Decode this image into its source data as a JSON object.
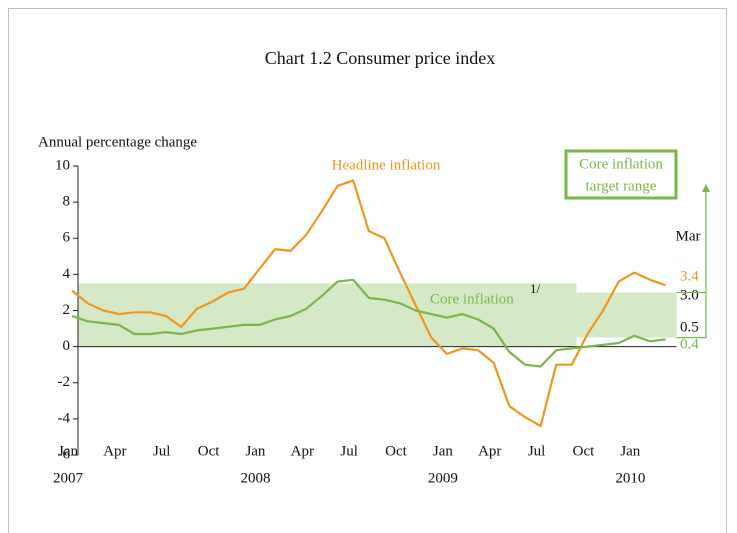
{
  "chart_data": {
    "type": "line",
    "title": "Chart 1.2  Consumer price index",
    "y_label": "Annual percentage change",
    "categories": [
      "Jan",
      null,
      null,
      "Apr",
      null,
      null,
      "Jul",
      null,
      null,
      "Oct",
      null,
      null,
      "Jan",
      null,
      null,
      "Apr",
      null,
      null,
      "Jul",
      null,
      null,
      "Oct",
      null,
      null,
      "Jan",
      null,
      null,
      "Apr",
      null,
      null,
      "Jul",
      null,
      null,
      "Oct",
      null,
      null,
      "Jan",
      null,
      null
    ],
    "years": [
      "2007",
      null,
      null,
      null,
      null,
      null,
      null,
      null,
      null,
      null,
      null,
      null,
      "2008",
      null,
      null,
      null,
      null,
      null,
      null,
      null,
      null,
      null,
      null,
      null,
      "2009",
      null,
      null,
      null,
      null,
      null,
      null,
      null,
      null,
      null,
      null,
      null,
      "2010",
      null,
      null
    ],
    "series": [
      {
        "name": "Headline inflation",
        "color": "#f0961e",
        "values": [
          3.1,
          2.4,
          2.0,
          1.8,
          1.9,
          1.9,
          1.7,
          1.1,
          2.1,
          2.5,
          3.0,
          3.2,
          4.3,
          5.4,
          5.3,
          6.2,
          7.5,
          8.9,
          9.2,
          6.4,
          6.0,
          4.1,
          2.3,
          0.5,
          -0.4,
          -0.1,
          -0.2,
          -0.9,
          -3.3,
          -3.9,
          -4.4,
          -1.0,
          -1.0,
          0.7,
          2.0,
          3.6,
          4.1,
          3.7,
          3.4
        ]
      },
      {
        "name": "Core inflation",
        "footnote": "1/",
        "color": "#7ab648",
        "values": [
          1.7,
          1.4,
          1.3,
          1.2,
          0.7,
          0.7,
          0.8,
          0.7,
          0.9,
          1.0,
          1.1,
          1.2,
          1.2,
          1.5,
          1.7,
          2.1,
          2.8,
          3.6,
          3.7,
          2.7,
          2.6,
          2.4,
          2.0,
          1.8,
          1.6,
          1.8,
          1.5,
          1.0,
          -0.3,
          -1.0,
          -1.1,
          -0.2,
          -0.1,
          0.0,
          0.1,
          0.2,
          0.6,
          0.3,
          0.4
        ]
      }
    ],
    "target_range": {
      "name": "Core inflation target range",
      "name_lines": [
        "Core inflation",
        "target range"
      ],
      "color": "#d6e9c6",
      "bands": [
        {
          "low": 0,
          "high": 3.5
        },
        {
          "low": 0.5,
          "high": 3,
          "labels": {
            "high": "3.0",
            "low": "0.5"
          }
        }
      ]
    },
    "end_label": "Mar",
    "ylim": [
      -6,
      10
    ],
    "yticks": [
      -6,
      -4,
      -2,
      0,
      2,
      4,
      6,
      8,
      10
    ]
  }
}
